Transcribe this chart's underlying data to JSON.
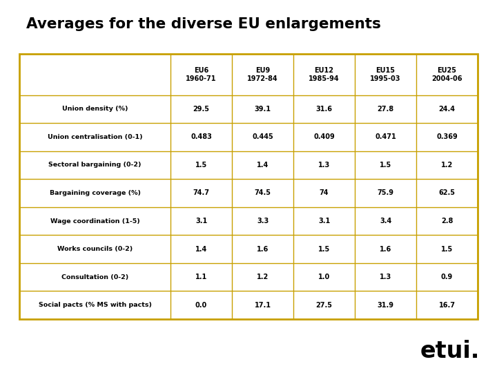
{
  "title": "Averages for the diverse EU enlargements",
  "title_bg": "#E8622A",
  "title_color": "#000000",
  "table_bg": "#FFFFC0",
  "table_border": "#C8A000",
  "col_headers": [
    "EU6\n1960-71",
    "EU9\n1972-84",
    "EU12\n1985-94",
    "EU15\n1995-03",
    "EU25\n2004-06"
  ],
  "row_labels": [
    "Union density (%)",
    "Union centralisation (0-1)",
    "Sectoral bargaining (0-2)",
    "Bargaining coverage (%)",
    "Wage coordination (1-5)",
    "Works councils (0-2)",
    "Consultation (0-2)",
    "Social pacts (% MS with pacts)"
  ],
  "data_str": [
    [
      "29.5",
      "39.1",
      "31.6",
      "27.8",
      "24.4"
    ],
    [
      "0.483",
      "0.445",
      "0.409",
      "0.471",
      "0.369"
    ],
    [
      "1.5",
      "1.4",
      "1.3",
      "1.5",
      "1.2"
    ],
    [
      "74.7",
      "74.5",
      "74",
      "75.9",
      "62.5"
    ],
    [
      "3.1",
      "3.3",
      "3.1",
      "3.4",
      "2.8"
    ],
    [
      "1.4",
      "1.6",
      "1.5",
      "1.6",
      "1.5"
    ],
    [
      "1.1",
      "1.2",
      "1.0",
      "1.3",
      "0.9"
    ],
    [
      "0.0",
      "17.1",
      "27.5",
      "31.9",
      "16.7"
    ]
  ],
  "bg_color": "#FFFFFF",
  "etui_text": "etui.",
  "etui_color": "#000000",
  "text_color": "#000000"
}
